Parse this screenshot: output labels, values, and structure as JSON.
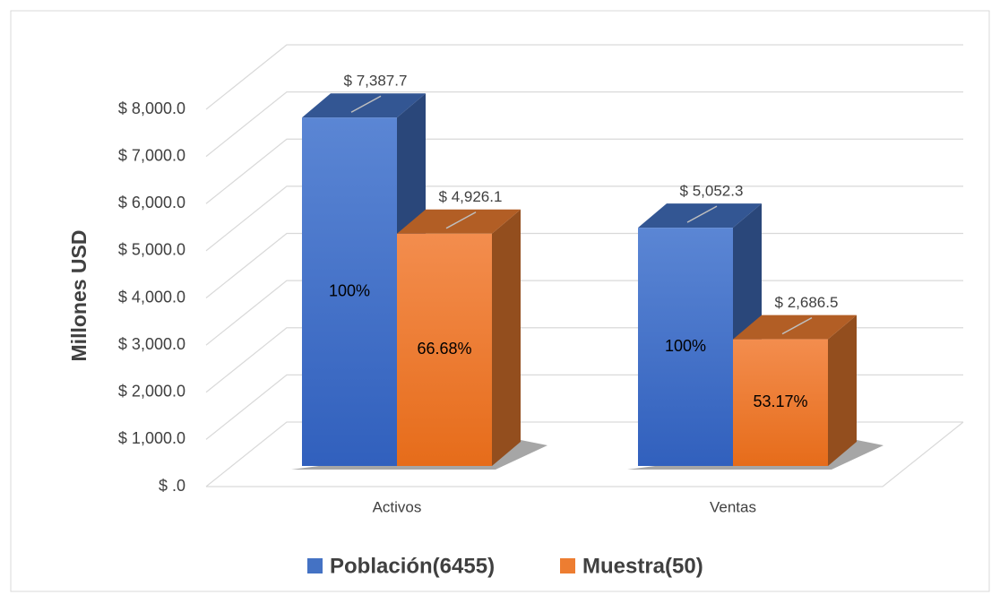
{
  "chart_data": {
    "type": "bar3d",
    "y_label": "Millones USD",
    "categories": [
      "Activos",
      "Ventas"
    ],
    "series": [
      {
        "name": "Población(6455)",
        "color": "#4472c4",
        "values": [
          7387.7,
          5052.3
        ],
        "value_labels": [
          "$ 7,387.7",
          "$ 5,052.3"
        ],
        "share_labels": [
          "100%",
          "100%"
        ]
      },
      {
        "name": "Muestra(50)",
        "color": "#ed7d31",
        "values": [
          4926.1,
          2686.5
        ],
        "value_labels": [
          "$ 4,926.1",
          "$ 2,686.5"
        ],
        "share_labels": [
          "66.68%",
          "53.17%"
        ]
      }
    ],
    "ylim": [
      0,
      8000
    ],
    "yticks": [
      {
        "value": 0,
        "label": "$ .0"
      },
      {
        "value": 1000,
        "label": "$ 1,000.0"
      },
      {
        "value": 2000,
        "label": "$ 2,000.0"
      },
      {
        "value": 3000,
        "label": "$ 3,000.0"
      },
      {
        "value": 4000,
        "label": "$ 4,000.0"
      },
      {
        "value": 5000,
        "label": "$ 5,000.0"
      },
      {
        "value": 6000,
        "label": "$ 6,000.0"
      },
      {
        "value": 7000,
        "label": "$ 7,000.0"
      },
      {
        "value": 8000,
        "label": "$ 8,000.0"
      }
    ],
    "grid": true,
    "legend": "bottom"
  }
}
